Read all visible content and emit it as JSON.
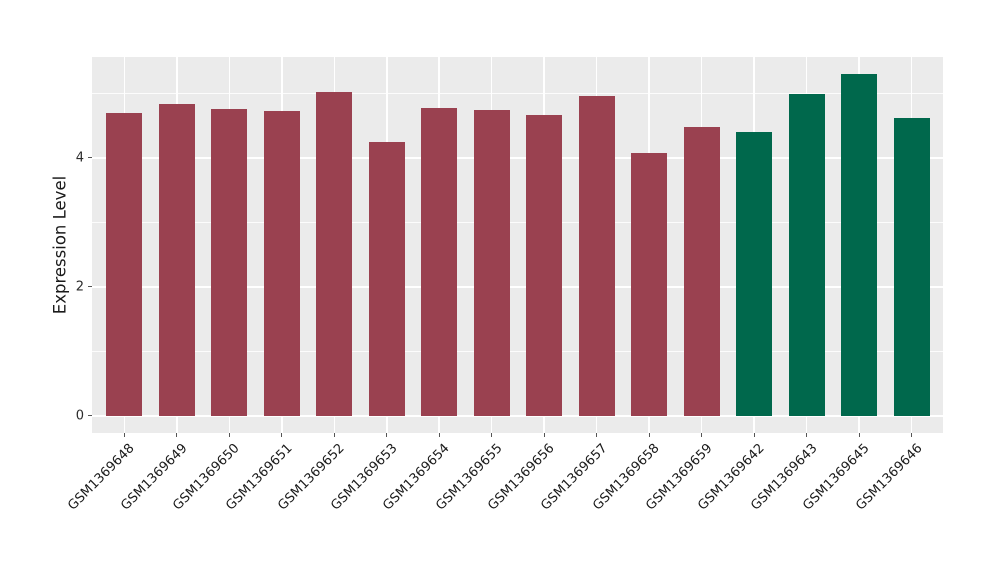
{
  "chart_data": {
    "type": "bar",
    "title": "",
    "xlabel": "",
    "ylabel": "Expression Level",
    "categories": [
      "GSM1369648",
      "GSM1369649",
      "GSM1369650",
      "GSM1369651",
      "GSM1369652",
      "GSM1369653",
      "GSM1369654",
      "GSM1369655",
      "GSM1369656",
      "GSM1369657",
      "GSM1369658",
      "GSM1369659",
      "GSM1369642",
      "GSM1369643",
      "GSM1369645",
      "GSM1369646"
    ],
    "values": [
      4.7,
      4.84,
      4.75,
      4.72,
      5.02,
      4.25,
      4.77,
      4.74,
      4.66,
      4.96,
      4.07,
      4.47,
      4.4,
      4.99,
      5.3,
      4.61
    ],
    "bar_groups": [
      "maroon",
      "maroon",
      "maroon",
      "maroon",
      "maroon",
      "maroon",
      "maroon",
      "maroon",
      "maroon",
      "maroon",
      "maroon",
      "maroon",
      "green",
      "green",
      "green",
      "green"
    ],
    "group_colors": {
      "maroon": "#9A4150",
      "green": "#00684C"
    },
    "yticks": [
      "0",
      "2",
      "4"
    ],
    "ytick_values": [
      0,
      2,
      4
    ],
    "minor_ytick_values": [
      1,
      3,
      5
    ],
    "ylim": [
      -0.27,
      5.57
    ],
    "legend": "none",
    "grid": "on",
    "style_colors": {
      "plot_background": "#EBEBEB",
      "grid": "#FFFFFF",
      "tick": "#555555",
      "text": "#1a1a1a"
    }
  }
}
